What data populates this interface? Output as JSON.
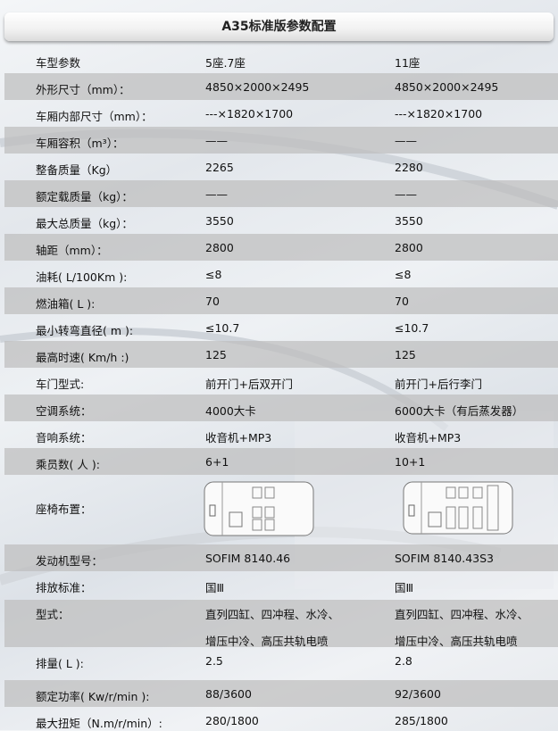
{
  "title": "A35标准版参数配置",
  "rows": [
    {
      "label": "车型参数",
      "v1": "5座.7座",
      "v2": "11座"
    },
    {
      "label": "外形尺寸（mm）：",
      "v1": "4850×2000×2495",
      "v2": "4850×2000×2495"
    },
    {
      "label": "车厢内部尺寸（mm）：",
      "v1": "---×1820×1700",
      "v2": "---×1820×1700"
    },
    {
      "label": "车厢容积（m³）：",
      "v1": "——",
      "v2": "——"
    },
    {
      "label": "整备质量（Kg）",
      "v1": "2265",
      "v2": "2280"
    },
    {
      "label": "额定载质量（kg）：",
      "v1": "——",
      "v2": "——"
    },
    {
      "label": "最大总质量（kg）：",
      "v1": "3550",
      "v2": "3550"
    },
    {
      "label": "轴距（mm）：",
      "v1": "2800",
      "v2": "2800"
    },
    {
      "label": "油耗( L/100Km ):",
      "v1": "≤8",
      "v2": "≤8"
    },
    {
      "label": "燃油箱( L ):",
      "v1": "70",
      "v2": "70"
    },
    {
      "label": "最小转弯直径( m ):",
      "v1": "≤10.7",
      "v2": "≤10.7"
    },
    {
      "label": "最高时速( Km/h :)",
      "v1": "125",
      "v2": "125"
    },
    {
      "label": "车门型式:",
      "v1": "前开门+后双开门",
      "v2": "前开门+后行李门"
    },
    {
      "label": "空调系统：",
      "v1": "4000大卡",
      "v2": "6000大卡（有后蒸发器）"
    },
    {
      "label": "音响系统：",
      "v1": "收音机+MP3",
      "v2": "收音机+MP3"
    },
    {
      "label": "乘员数( 人 ):",
      "v1": "6+1",
      "v2": "10+1"
    }
  ],
  "seat_row": {
    "label": "座椅布置："
  },
  "engine_rows": [
    {
      "label": "发动机型号：",
      "v1": "SOFIM 8140.46",
      "v2": "SOFIM 8140.43S3"
    },
    {
      "label": "排放标准：",
      "v1": "国Ⅲ",
      "v2": "国Ⅲ"
    },
    {
      "label": "型式：",
      "v1": "直列四缸、四冲程、水冷、",
      "v1b": "增压中冷、高压共轨电喷",
      "v2": "直列四缸、四冲程、水冷、",
      "v2b": "增压中冷、高压共轨电喷"
    },
    {
      "label": "排量( L ):",
      "v1": "2.5",
      "v2": "2.8"
    },
    {
      "label": "额定功率( Kw/r/min ):",
      "v1": "88/3600",
      "v2": "92/3600"
    },
    {
      "label": "最大扭矩（N.m/r/min）:",
      "v1": "280/1800",
      "v2": "285/1800"
    }
  ]
}
